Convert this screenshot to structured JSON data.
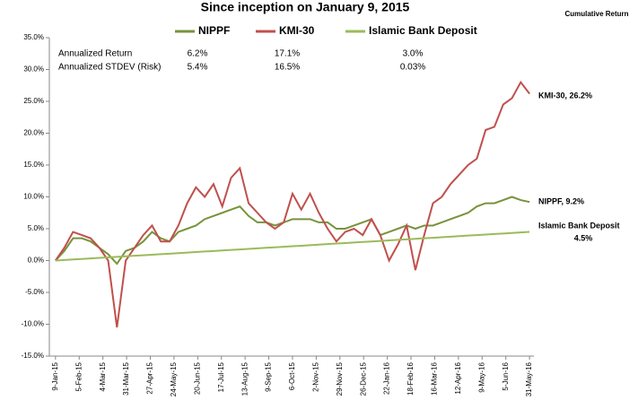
{
  "chart_data": {
    "type": "line",
    "title": "Since inception on January 9, 2015",
    "y_axis_label": "Cumulative Return",
    "table": {
      "rows": [
        [
          "Annualized Return",
          "6.2%",
          "17.1%",
          "3.0%"
        ],
        [
          "Annualized STDEV (Risk)",
          "5.4%",
          "16.5%",
          "0.03%"
        ]
      ]
    },
    "annotations": [
      "KMI-30, 26.2%",
      "NIPPF, 9.2%",
      "Islamic Bank Deposit",
      "4.5%"
    ],
    "x": [
      0,
      10,
      20,
      30,
      40,
      50,
      60,
      70,
      80,
      90,
      100,
      110,
      120,
      130,
      140,
      150,
      160,
      170,
      180,
      190,
      200,
      210,
      220,
      230,
      240,
      250,
      260,
      270,
      280,
      290,
      300,
      310,
      320,
      330,
      340,
      350,
      360,
      370,
      380,
      390,
      400,
      410,
      420,
      430,
      440,
      450,
      460,
      470,
      480,
      490,
      500,
      510,
      520,
      530,
      540
    ],
    "xlim": [
      -7,
      545
    ],
    "xticks": [
      {
        "value": 0,
        "label": "9-Jan-15"
      },
      {
        "value": 27,
        "label": "5-Feb-15"
      },
      {
        "value": 54,
        "label": "4-Mar-15"
      },
      {
        "value": 81,
        "label": "31-Mar-15"
      },
      {
        "value": 108,
        "label": "27-Apr-15"
      },
      {
        "value": 135,
        "label": "24-May-15"
      },
      {
        "value": 162,
        "label": "20-Jun-15"
      },
      {
        "value": 189,
        "label": "17-Jul-15"
      },
      {
        "value": 216,
        "label": "13-Aug-15"
      },
      {
        "value": 243,
        "label": "9-Sep-15"
      },
      {
        "value": 270,
        "label": "6-Oct-15"
      },
      {
        "value": 297,
        "label": "2-Nov-15"
      },
      {
        "value": 324,
        "label": "29-Nov-15"
      },
      {
        "value": 351,
        "label": "26-Dec-15"
      },
      {
        "value": 378,
        "label": "22-Jan-16"
      },
      {
        "value": 405,
        "label": "18-Feb-16"
      },
      {
        "value": 432,
        "label": "16-Mar-16"
      },
      {
        "value": 459,
        "label": "12-Apr-16"
      },
      {
        "value": 486,
        "label": "9-May-16"
      },
      {
        "value": 513,
        "label": "5-Jun-16"
      },
      {
        "value": 540,
        "label": "31-May-16"
      }
    ],
    "ylim": [
      -15,
      35
    ],
    "yticks": [
      {
        "value": -15,
        "label": "-15.0%"
      },
      {
        "value": -10,
        "label": "-10.0%"
      },
      {
        "value": -5,
        "label": "-5.0%"
      },
      {
        "value": 0,
        "label": "0.0%"
      },
      {
        "value": 5,
        "label": "5.0%"
      },
      {
        "value": 10,
        "label": "10.0%"
      },
      {
        "value": 15,
        "label": "15.0%"
      },
      {
        "value": 20,
        "label": "20.0%"
      },
      {
        "value": 25,
        "label": "25.0%"
      },
      {
        "value": 30,
        "label": "30.0%"
      },
      {
        "value": 35,
        "label": "35.0%"
      }
    ],
    "grid": false,
    "series": [
      {
        "name": "NIPPF",
        "color": "#77933c",
        "values": [
          0,
          1.5,
          3.5,
          3.5,
          3,
          2,
          1,
          -0.5,
          1.5,
          2,
          3,
          4.5,
          3.5,
          3,
          4.5,
          5,
          5.5,
          6.5,
          7,
          7.5,
          8,
          8.5,
          7,
          6,
          6,
          5.5,
          6,
          6.5,
          6.5,
          6.5,
          6,
          6,
          5,
          5,
          5.5,
          6,
          6.5,
          4,
          4.5,
          5,
          5.5,
          5,
          5.5,
          5.5,
          6,
          6.5,
          7,
          7.5,
          8.5,
          9,
          9,
          9.5,
          10,
          9.5,
          9.2
        ]
      },
      {
        "name": "KMI-30",
        "color": "#c0504d",
        "values": [
          0,
          2,
          4.5,
          4,
          3.5,
          2,
          0,
          -10.5,
          0,
          2,
          4,
          5.5,
          3,
          3,
          5.5,
          9,
          11.5,
          10,
          12,
          8.5,
          13,
          14.5,
          9,
          7.5,
          6,
          5,
          6,
          10.5,
          8,
          10.5,
          7.5,
          5,
          3,
          4.5,
          5,
          4,
          6.5,
          4,
          0,
          2.5,
          5.5,
          -1.5,
          4,
          9,
          10,
          12,
          13.5,
          15,
          16,
          20.5,
          21,
          24.5,
          25.5,
          28,
          26.2
        ]
      },
      {
        "name": "Islamic Bank Deposit",
        "color": "#9bbb59",
        "values": [
          0,
          0.08,
          0.17,
          0.25,
          0.33,
          0.42,
          0.5,
          0.58,
          0.67,
          0.75,
          0.83,
          0.92,
          1,
          1.08,
          1.17,
          1.25,
          1.33,
          1.42,
          1.5,
          1.58,
          1.67,
          1.75,
          1.83,
          1.92,
          2,
          2.08,
          2.17,
          2.25,
          2.33,
          2.42,
          2.5,
          2.58,
          2.67,
          2.75,
          2.83,
          2.92,
          3,
          3.08,
          3.17,
          3.25,
          3.33,
          3.42,
          3.5,
          3.58,
          3.67,
          3.75,
          3.83,
          3.92,
          4,
          4.08,
          4.17,
          4.25,
          4.33,
          4.42,
          4.5
        ]
      }
    ]
  }
}
